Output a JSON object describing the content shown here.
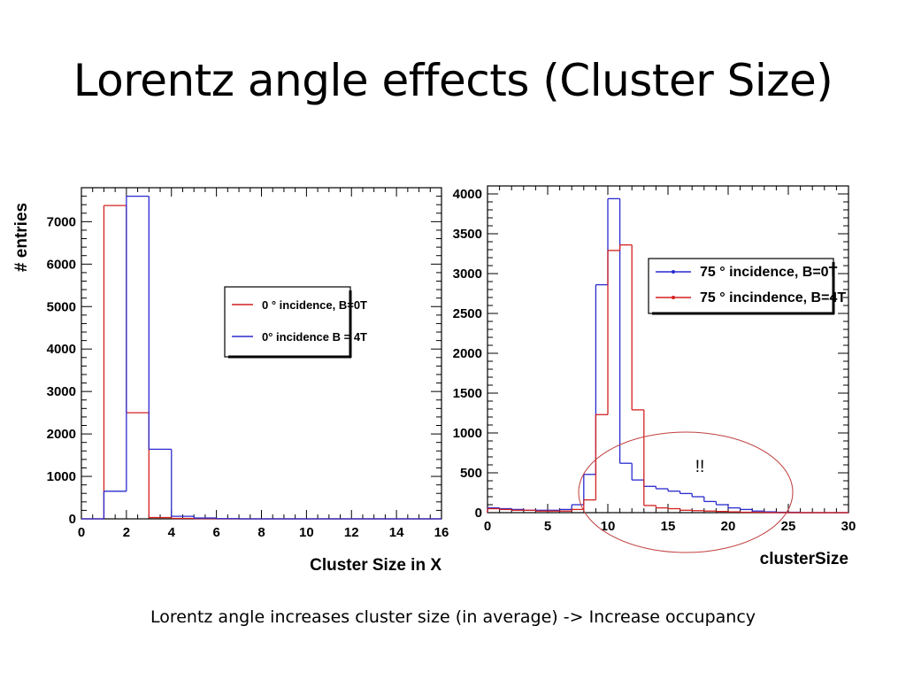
{
  "slide": {
    "title": "Lorentz angle effects (Cluster Size)",
    "caption": "Lorentz angle increases cluster size (in average) -> Increase occupancy"
  },
  "chart_data": [
    {
      "type": "histogram",
      "xlabel": "Cluster Size in X",
      "ylabel": "# entries",
      "xlim": [
        0,
        16
      ],
      "ylim": [
        0,
        7800
      ],
      "xticks": [
        0,
        2,
        4,
        6,
        8,
        10,
        12,
        14,
        16
      ],
      "yticks": [
        0,
        1000,
        2000,
        3000,
        4000,
        5000,
        6000,
        7000
      ],
      "bin_edges": [
        0,
        1,
        2,
        3,
        4,
        5,
        6,
        7,
        8,
        9,
        10,
        11,
        12,
        13,
        14,
        15,
        16
      ],
      "legend_position": "right-middle",
      "series": [
        {
          "name": "0 ° incidence, B=0T",
          "color": "#d42020",
          "values": [
            0,
            7380,
            2500,
            30,
            10,
            5,
            0,
            0,
            0,
            0,
            0,
            0,
            0,
            0,
            0,
            0
          ]
        },
        {
          "name": "0° incidence B = 4T",
          "color": "#2a2ad0",
          "values": [
            0,
            650,
            7600,
            1640,
            60,
            20,
            5,
            0,
            0,
            0,
            0,
            0,
            0,
            0,
            0,
            0
          ]
        }
      ]
    },
    {
      "type": "histogram",
      "xlabel": "clusterSize",
      "ylabel": "",
      "xlim": [
        0,
        30
      ],
      "ylim": [
        0,
        4100
      ],
      "xticks": [
        0,
        5,
        10,
        15,
        20,
        25,
        30
      ],
      "yticks": [
        0,
        500,
        1000,
        1500,
        2000,
        2500,
        3000,
        3500,
        4000
      ],
      "bin_edges": [
        0,
        1,
        2,
        3,
        4,
        5,
        6,
        7,
        8,
        9,
        10,
        11,
        12,
        13,
        14,
        15,
        16,
        17,
        18,
        19,
        20,
        21,
        22,
        23,
        24,
        25,
        26,
        27,
        28,
        29,
        30
      ],
      "legend_position": "top-right",
      "annotation": "!!",
      "series": [
        {
          "name": "75 ° incidence, B=0T",
          "color": "#2a2ad0",
          "values": [
            60,
            50,
            40,
            30,
            30,
            30,
            40,
            100,
            480,
            2860,
            3940,
            620,
            410,
            330,
            300,
            270,
            240,
            200,
            140,
            100,
            60,
            40,
            20,
            10,
            5,
            5,
            0,
            0,
            0,
            0
          ]
        },
        {
          "name": "75 ° incindence, B=4T",
          "color": "#d42020",
          "values": [
            50,
            40,
            30,
            30,
            20,
            20,
            20,
            40,
            160,
            1230,
            3290,
            3360,
            1290,
            90,
            60,
            50,
            30,
            25,
            20,
            15,
            10,
            5,
            5,
            0,
            0,
            0,
            0,
            0,
            0,
            0
          ]
        }
      ]
    }
  ]
}
